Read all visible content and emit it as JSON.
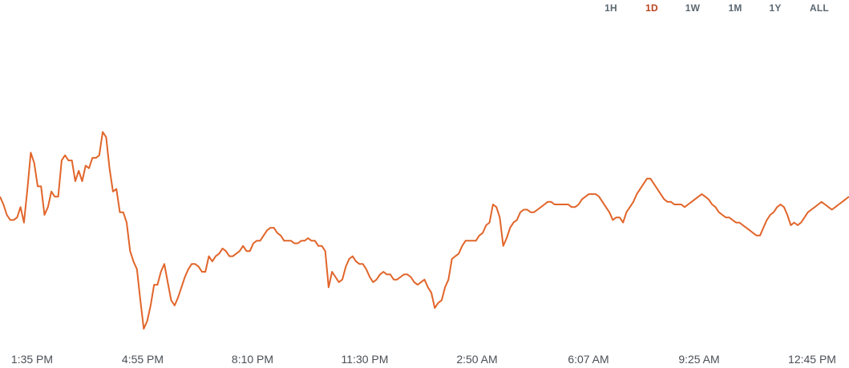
{
  "range_tabs": {
    "items": [
      "1H",
      "1D",
      "1W",
      "1M",
      "1Y",
      "ALL"
    ],
    "active": "1D",
    "active_color": "#b8431c"
  },
  "chart_data": {
    "type": "line",
    "title": "",
    "xlabel": "",
    "ylabel": "",
    "line_color": "#e1652a",
    "grid": false,
    "x_ticks": [
      "1:35 PM",
      "4:55 PM",
      "8:10 PM",
      "11:30 PM",
      "2:50 AM",
      "6:07 AM",
      "9:25 AM",
      "12:45 PM"
    ],
    "ylim": [
      0,
      100
    ],
    "series": [
      {
        "values": [
          55,
          52,
          48,
          46,
          46,
          47,
          51,
          45,
          58,
          72,
          68,
          59,
          59,
          48,
          51,
          57,
          55,
          55,
          69,
          71,
          69,
          69,
          61,
          65,
          61,
          67,
          66,
          70,
          70,
          71,
          80,
          78,
          66,
          57,
          58,
          49,
          49,
          45,
          34,
          30,
          27,
          15,
          4,
          7,
          13,
          21,
          21,
          26,
          29,
          22,
          15,
          13,
          16,
          20,
          24,
          27,
          29,
          29,
          28,
          26,
          26,
          32,
          30,
          32,
          33,
          35,
          34,
          32,
          32,
          33,
          34,
          36,
          34,
          34,
          37,
          38,
          38,
          40,
          42,
          43,
          43,
          41,
          40,
          38,
          38,
          38,
          37,
          37,
          38,
          38,
          39,
          38,
          38,
          36,
          36,
          34,
          20,
          26,
          24,
          22,
          23,
          28,
          31,
          32,
          30,
          29,
          29,
          27,
          24,
          22,
          23,
          25,
          26,
          25,
          25,
          23,
          23,
          24,
          25,
          25,
          24,
          22,
          21,
          22,
          23,
          20,
          18,
          12,
          14,
          15,
          20,
          23,
          31,
          32,
          33,
          36,
          38,
          38,
          38,
          38,
          40,
          41,
          44,
          45,
          52,
          51,
          47,
          36,
          39,
          43,
          45,
          46,
          49,
          50,
          50,
          49,
          49,
          50,
          51,
          52,
          53,
          53,
          52,
          52,
          52,
          52,
          52,
          51,
          51,
          52,
          54,
          55,
          56,
          56,
          56,
          55,
          53,
          51,
          49,
          46,
          47,
          47,
          45,
          49,
          51,
          53,
          56,
          58,
          60,
          62,
          62,
          60,
          58,
          56,
          54,
          53,
          53,
          52,
          52,
          52,
          51,
          52,
          53,
          54,
          55,
          56,
          55,
          54,
          52,
          51,
          49,
          48,
          47,
          47,
          46,
          45,
          45,
          44,
          43,
          42,
          41,
          40,
          40,
          43,
          46,
          48,
          49,
          51,
          52,
          51,
          48,
          44,
          45,
          44,
          45,
          47,
          49,
          50,
          51,
          52,
          53,
          52,
          51,
          50,
          51,
          52,
          53,
          54,
          55
        ],
        "color": "#e1652a"
      }
    ]
  }
}
